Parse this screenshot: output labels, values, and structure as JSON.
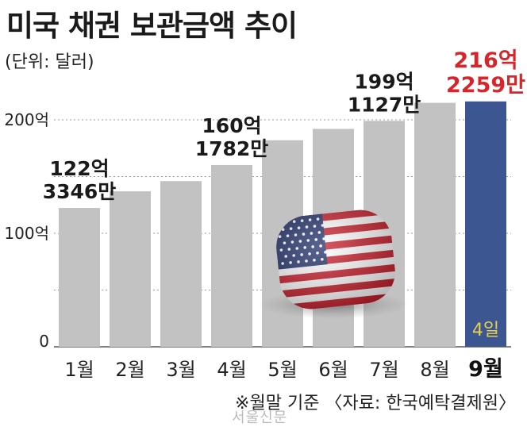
{
  "title": "미국 채권 보관금액 추이",
  "unit": "(단위: 달러)",
  "footnote": "※월말 기준 〈자료: 한국예탁결제원〉",
  "watermark": "서울신문",
  "colors": {
    "bar": "#c2c2c2",
    "highlight_bar": "#3b5691",
    "highlight_text": "#d7262b",
    "inner_label": "#e8cf4f"
  },
  "chart_data": {
    "type": "bar",
    "title": "미국 채권 보관금액 추이",
    "ylabel": "",
    "categories": [
      "1월",
      "2월",
      "3월",
      "4월",
      "5월",
      "6월",
      "7월",
      "8월",
      "9월"
    ],
    "values": [
      122.3346,
      137,
      146,
      160.1782,
      182,
      192,
      199.1127,
      215,
      216.2259
    ],
    "value_unit": "억 달러",
    "ylim": [
      0,
      230
    ],
    "yticks": [
      {
        "value": 0,
        "label": "0"
      },
      {
        "value": 100,
        "label": "100억"
      },
      {
        "value": 200,
        "label": "200억"
      }
    ],
    "gridlines": [
      50,
      100,
      150,
      200
    ],
    "highlight_index": 8,
    "highlight_inner_label": "4일",
    "annotations": [
      {
        "index": 0,
        "lines": [
          "122억",
          "3346만"
        ]
      },
      {
        "index": 3,
        "lines": [
          "160억",
          "1782만"
        ]
      },
      {
        "index": 6,
        "lines": [
          "199억",
          "1127만"
        ]
      },
      {
        "index": 8,
        "lines": [
          "216억",
          "2259만"
        ]
      }
    ],
    "grid": true,
    "legend": "none"
  }
}
